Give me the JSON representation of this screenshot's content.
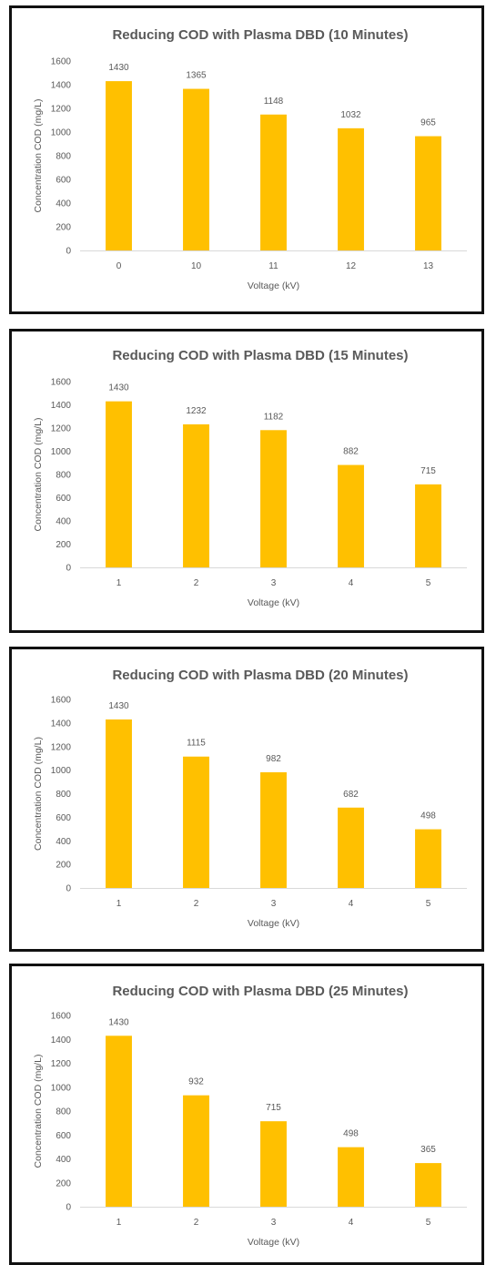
{
  "chart_data": [
    {
      "type": "bar",
      "title": "Reducing COD with Plasma DBD (10  Minutes)",
      "xlabel": "Voltage (kV)",
      "ylabel": "Concentration COD (mg/L)",
      "ylim": [
        0,
        1600
      ],
      "yticks": [
        "0",
        "200",
        "400",
        "600",
        "800",
        "1000",
        "1200",
        "1400",
        "1600"
      ],
      "categories": [
        "0",
        "10",
        "11",
        "12",
        "13"
      ],
      "values": [
        1430,
        1365,
        1148,
        1032,
        965
      ],
      "value_labels": [
        "1430",
        "1365",
        "1148",
        "1032",
        "965"
      ],
      "bar_color": "#FFC000",
      "grid": false,
      "legend": "none"
    },
    {
      "type": "bar",
      "title": "Reducing COD with Plasma DBD (15  Minutes)",
      "xlabel": "Voltage (kV)",
      "ylabel": "Concentration COD (mg/L)",
      "ylim": [
        0,
        1600
      ],
      "yticks": [
        "0",
        "200",
        "400",
        "600",
        "800",
        "1000",
        "1200",
        "1400",
        "1600"
      ],
      "categories": [
        "1",
        "2",
        "3",
        "4",
        "5"
      ],
      "values": [
        1430,
        1232,
        1182,
        882,
        715
      ],
      "value_labels": [
        "1430",
        "1232",
        "1182",
        "882",
        "715"
      ],
      "bar_color": "#FFC000",
      "grid": false,
      "legend": "none"
    },
    {
      "type": "bar",
      "title": "Reducing COD with Plasma DBD (20  Minutes)",
      "xlabel": "Voltage (kV)",
      "ylabel": "Concentration COD (mg/L)",
      "ylim": [
        0,
        1600
      ],
      "yticks": [
        "0",
        "200",
        "400",
        "600",
        "800",
        "1000",
        "1200",
        "1400",
        "1600"
      ],
      "categories": [
        "1",
        "2",
        "3",
        "4",
        "5"
      ],
      "values": [
        1430,
        1115,
        982,
        682,
        498
      ],
      "value_labels": [
        "1430",
        "1115",
        "982",
        "682",
        "498"
      ],
      "bar_color": "#FFC000",
      "grid": false,
      "legend": "none"
    },
    {
      "type": "bar",
      "title": "Reducing COD with Plasma DBD (25  Minutes)",
      "xlabel": "Voltage (kV)",
      "ylabel": "Concentration COD (mg/L)",
      "ylim": [
        0,
        1600
      ],
      "yticks": [
        "0",
        "200",
        "400",
        "600",
        "800",
        "1000",
        "1200",
        "1400",
        "1600"
      ],
      "categories": [
        "1",
        "2",
        "3",
        "4",
        "5"
      ],
      "values": [
        1430,
        932,
        715,
        498,
        365
      ],
      "value_labels": [
        "1430",
        "932",
        "715",
        "498",
        "365"
      ],
      "bar_color": "#FFC000",
      "grid": false,
      "legend": "none"
    }
  ]
}
